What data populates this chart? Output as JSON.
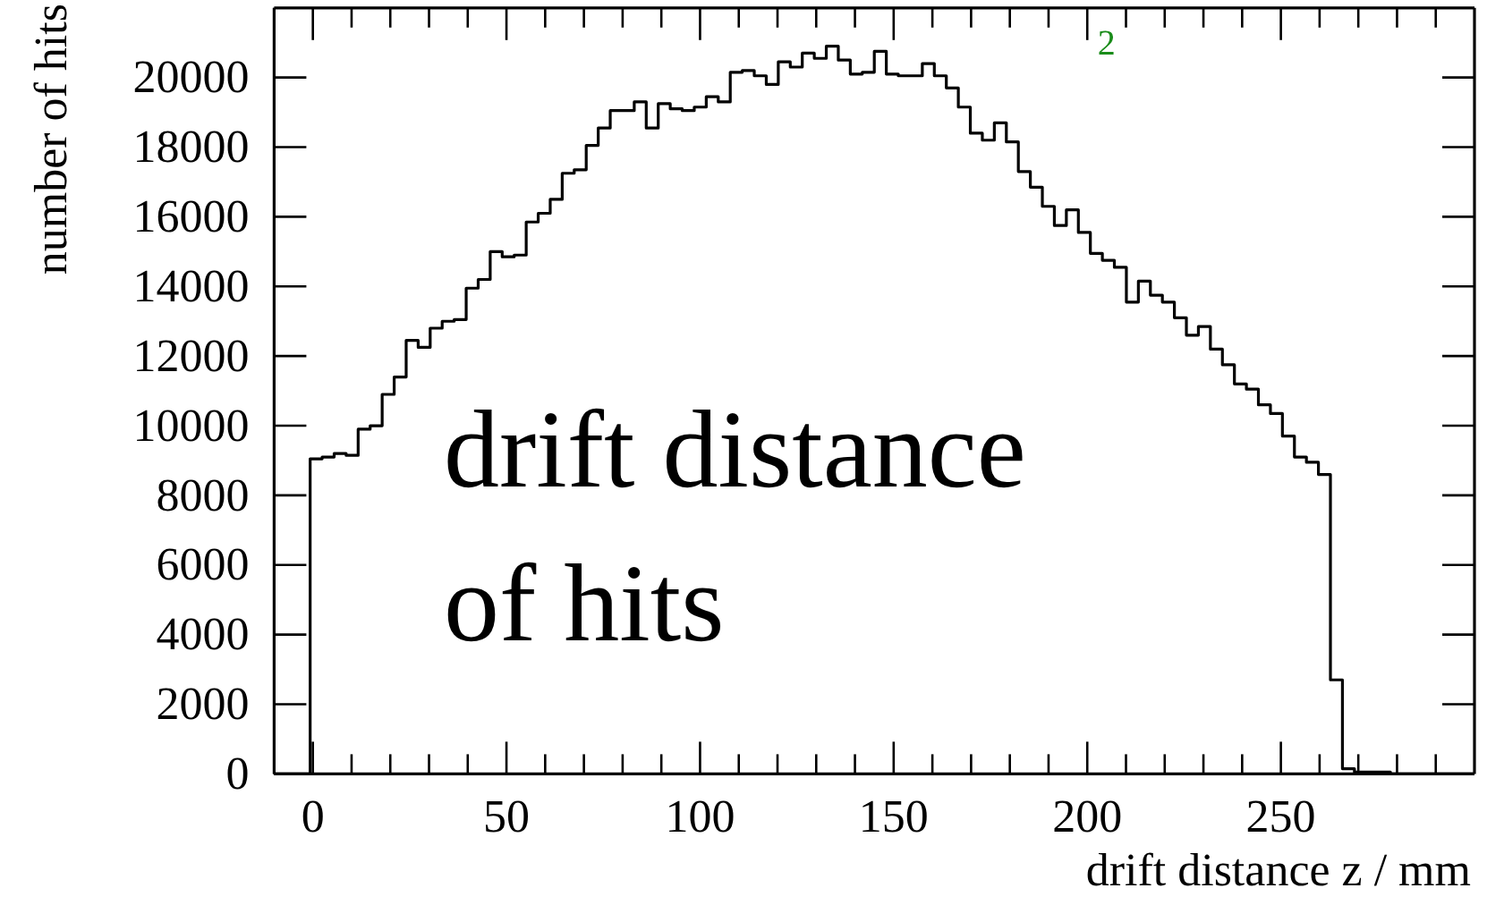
{
  "chart_data": {
    "type": "histogram",
    "title": "drift distance of hits",
    "xlabel": "drift distance z / mm",
    "ylabel": "number of hits",
    "annotations": [
      "2"
    ],
    "color": "#000000",
    "bins": [
      -10,
      -6.9,
      -3.8,
      -0.7,
      2.4,
      5.5,
      8.6,
      11.7,
      14.8,
      17.9,
      21,
      24.1,
      27.2,
      30.3,
      33.4,
      36.5,
      39.6,
      42.7,
      45.8,
      48.9,
      52,
      55.1,
      58.2,
      61.3,
      64.4,
      67.5,
      70.6,
      73.7,
      76.8,
      79.9,
      83,
      86.1,
      89.2,
      92.3,
      95.4,
      98.5,
      101.6,
      104.7,
      107.8,
      110.9,
      114,
      117.1,
      120.2,
      123.3,
      126.4,
      129.5,
      132.6,
      135.7,
      138.8,
      141.9,
      145,
      148.1,
      151.2,
      154.3,
      157.4,
      160.5,
      163.6,
      166.7,
      169.8,
      172.9,
      176,
      179.1,
      182.2,
      185.3,
      188.4,
      191.5,
      194.6,
      197.7,
      200.8,
      203.9,
      207,
      210.1,
      213.2,
      216.3,
      219.4,
      222.5,
      225.6,
      228.7,
      231.8,
      234.9,
      238,
      241.1,
      244.2,
      247.3,
      250.4,
      253.5,
      256.6,
      259.7,
      262.8,
      265.9,
      269,
      272.1,
      275.2,
      278.3,
      281.4,
      284.5,
      287.6,
      290.7,
      293.8,
      296.9,
      300
    ],
    "values": [
      0,
      0,
      0,
      9050,
      9100,
      9200,
      9150,
      9900,
      10000,
      10900,
      11400,
      12450,
      12250,
      12800,
      13000,
      13050,
      13950,
      14200,
      15000,
      14850,
      14900,
      15850,
      16100,
      16500,
      17250,
      17350,
      18050,
      18550,
      19050,
      19050,
      19300,
      18550,
      19250,
      19100,
      19050,
      19150,
      19450,
      19300,
      20150,
      20200,
      20050,
      19800,
      20450,
      20300,
      20700,
      20550,
      20900,
      20500,
      20100,
      20150,
      20750,
      20100,
      20050,
      20050,
      20400,
      20050,
      19700,
      19150,
      18400,
      18200,
      18700,
      18150,
      17300,
      16850,
      16300,
      15750,
      16200,
      15550,
      14950,
      14750,
      14550,
      13550,
      14150,
      13750,
      13550,
      13100,
      12600,
      12850,
      12200,
      11750,
      11200,
      11050,
      10600,
      10350,
      9700,
      9100,
      8950,
      8600,
      2700,
      150,
      50,
      50,
      50,
      0,
      0,
      0,
      0,
      0,
      0,
      0
    ],
    "xlim": [
      -10,
      300
    ],
    "ylim": [
      0,
      22000
    ],
    "xticks": [
      {
        "value": -10,
        "label": null
      },
      0,
      {
        "value": 10,
        "label": null
      },
      {
        "value": 20,
        "label": null
      },
      {
        "value": 30,
        "label": null
      },
      {
        "value": 40,
        "label": null
      },
      50,
      {
        "value": 60,
        "label": null
      },
      {
        "value": 70,
        "label": null
      },
      {
        "value": 80,
        "label": null
      },
      {
        "value": 90,
        "label": null
      },
      100,
      {
        "value": 110,
        "label": null
      },
      {
        "value": 120,
        "label": null
      },
      {
        "value": 130,
        "label": null
      },
      {
        "value": 140,
        "label": null
      },
      150,
      {
        "value": 160,
        "label": null
      },
      {
        "value": 170,
        "label": null
      },
      {
        "value": 180,
        "label": null
      },
      {
        "value": 190,
        "label": null
      },
      200,
      {
        "value": 210,
        "label": null
      },
      {
        "value": 220,
        "label": null
      },
      {
        "value": 230,
        "label": null
      },
      {
        "value": 240,
        "label": null
      },
      250,
      {
        "value": 260,
        "label": null
      },
      {
        "value": 270,
        "label": null
      },
      {
        "value": 280,
        "label": null
      },
      {
        "value": 290,
        "label": null
      }
    ],
    "yticks": [
      0,
      2000,
      4000,
      6000,
      8000,
      10000,
      12000,
      14000,
      16000,
      18000,
      20000
    ],
    "grid": false
  }
}
